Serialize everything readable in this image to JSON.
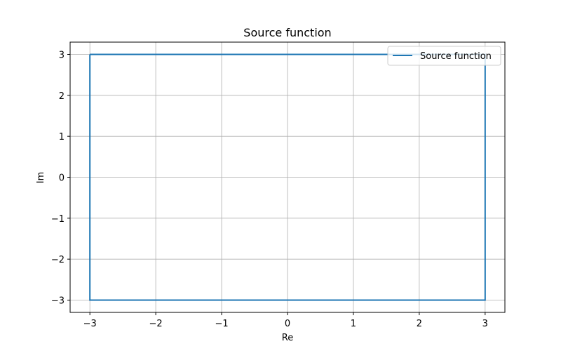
{
  "chart_data": {
    "type": "line",
    "title": "Source function",
    "xlabel": "Re",
    "ylabel": "Im",
    "xlim": [
      -3.3,
      3.3
    ],
    "ylim": [
      -3.3,
      3.3
    ],
    "xticks": [
      -3,
      -2,
      -1,
      0,
      1,
      2,
      3
    ],
    "yticks": [
      -3,
      -2,
      -1,
      0,
      1,
      2,
      3
    ],
    "xtick_labels": [
      "−3",
      "−2",
      "−1",
      "0",
      "1",
      "2",
      "3"
    ],
    "ytick_labels": [
      "−3",
      "−2",
      "−1",
      "0",
      "1",
      "2",
      "3"
    ],
    "grid": true,
    "legend_position": "top-right",
    "series": [
      {
        "name": "Source function",
        "color": "#1f77b4",
        "x": [
          -3,
          3,
          3,
          -3,
          -3
        ],
        "y": [
          3,
          3,
          -3,
          -3,
          3
        ]
      }
    ]
  }
}
